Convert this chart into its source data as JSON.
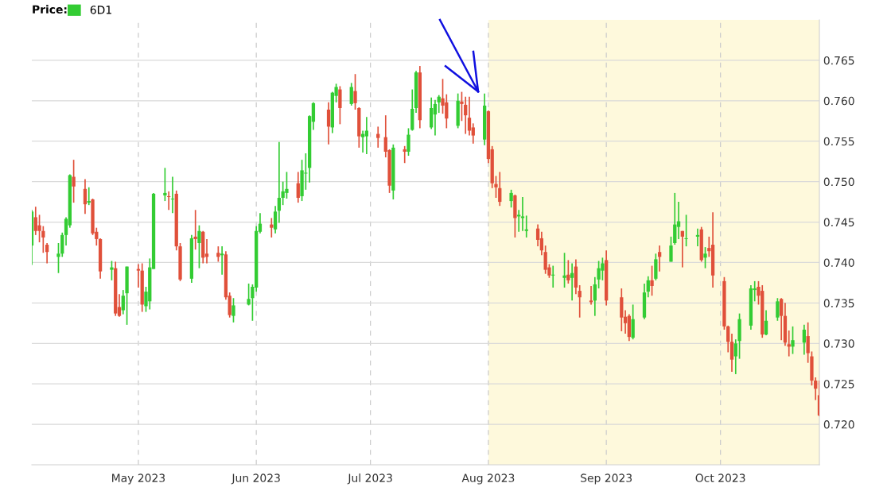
{
  "chart_data": {
    "type": "candlestick",
    "legend_title": "Price:",
    "x": [
      "2023-04-03",
      "2023-04-04",
      "2023-04-05",
      "2023-04-06",
      "2023-04-07",
      "2023-04-10",
      "2023-04-11",
      "2023-04-12",
      "2023-04-13",
      "2023-04-14",
      "2023-04-17",
      "2023-04-18",
      "2023-04-19",
      "2023-04-20",
      "2023-04-21",
      "2023-04-24",
      "2023-04-25",
      "2023-04-26",
      "2023-04-27",
      "2023-04-28",
      "2023-05-01",
      "2023-05-02",
      "2023-05-03",
      "2023-05-04",
      "2023-05-05",
      "2023-05-08",
      "2023-05-09",
      "2023-05-10",
      "2023-05-11",
      "2023-05-12",
      "2023-05-15",
      "2023-05-16",
      "2023-05-17",
      "2023-05-18",
      "2023-05-19",
      "2023-05-22",
      "2023-05-23",
      "2023-05-24",
      "2023-05-25",
      "2023-05-26",
      "2023-05-30",
      "2023-05-31",
      "2023-06-01",
      "2023-06-02",
      "2023-06-05",
      "2023-06-06",
      "2023-06-07",
      "2023-06-08",
      "2023-06-09",
      "2023-06-12",
      "2023-06-13",
      "2023-06-14",
      "2023-06-15",
      "2023-06-16",
      "2023-06-20",
      "2023-06-21",
      "2023-06-22",
      "2023-06-23",
      "2023-06-26",
      "2023-06-27",
      "2023-06-28",
      "2023-06-29",
      "2023-06-30",
      "2023-07-03",
      "2023-07-05",
      "2023-07-06",
      "2023-07-07",
      "2023-07-10",
      "2023-07-11",
      "2023-07-12",
      "2023-07-13",
      "2023-07-14",
      "2023-07-17",
      "2023-07-18",
      "2023-07-19",
      "2023-07-20",
      "2023-07-21",
      "2023-07-24",
      "2023-07-25",
      "2023-07-26",
      "2023-07-27",
      "2023-07-28",
      "2023-07-31",
      "2023-08-01",
      "2023-08-02",
      "2023-08-03",
      "2023-08-04",
      "2023-08-07",
      "2023-08-08",
      "2023-08-09",
      "2023-08-10",
      "2023-08-11",
      "2023-08-14",
      "2023-08-15",
      "2023-08-16",
      "2023-08-17",
      "2023-08-18",
      "2023-08-21",
      "2023-08-22",
      "2023-08-23",
      "2023-08-24",
      "2023-08-25",
      "2023-08-28",
      "2023-08-29",
      "2023-08-30",
      "2023-08-31",
      "2023-09-01",
      "2023-09-05",
      "2023-09-06",
      "2023-09-07",
      "2023-09-08",
      "2023-09-11",
      "2023-09-12",
      "2023-09-13",
      "2023-09-14",
      "2023-09-15",
      "2023-09-18",
      "2023-09-19",
      "2023-09-20",
      "2023-09-21",
      "2023-09-22",
      "2023-09-25",
      "2023-09-26",
      "2023-09-27",
      "2023-09-28",
      "2023-09-29",
      "2023-10-02",
      "2023-10-03",
      "2023-10-04",
      "2023-10-05",
      "2023-10-06",
      "2023-10-09",
      "2023-10-10",
      "2023-10-11",
      "2023-10-12",
      "2023-10-13",
      "2023-10-16",
      "2023-10-17",
      "2023-10-18",
      "2023-10-19",
      "2023-10-20",
      "2023-10-23",
      "2023-10-24",
      "2023-10-25",
      "2023-10-26",
      "2023-10-27"
    ],
    "series": [
      {
        "name": "6D1",
        "color": "#33cc33",
        "colors": [
          "#33cc33",
          "#e0503a",
          "#e0503a",
          "#e0503a",
          "#e0503a",
          "#33cc33",
          "#33cc33",
          "#33cc33",
          "#33cc33",
          "#e0503a",
          "#e0503a",
          "#33cc33",
          "#e0503a",
          "#e0503a",
          "#e0503a",
          "#33cc33",
          "#e0503a",
          "#e0503a",
          "#33cc33",
          "#33cc33",
          "#e0503a",
          "#e0503a",
          "#33cc33",
          "#33cc33",
          "#33cc33",
          "#33cc33",
          "#e0503a",
          "#33cc33",
          "#e0503a",
          "#e0503a",
          "#33cc33",
          "#e0503a",
          "#33cc33",
          "#e0503a",
          "#e0503a",
          "#e0503a",
          "#33cc33",
          "#e0503a",
          "#e0503a",
          "#33cc33",
          "#33cc33",
          "#33cc33",
          "#33cc33",
          "#33cc33",
          "#e0503a",
          "#33cc33",
          "#33cc33",
          "#33cc33",
          "#33cc33",
          "#e0503a",
          "#33cc33",
          "#33cc33",
          "#33cc33",
          "#33cc33",
          "#e0503a",
          "#33cc33",
          "#33cc33",
          "#e0503a",
          "#33cc33",
          "#e0503a",
          "#e0503a",
          "#33cc33",
          "#33cc33",
          "#e0503a",
          "#e0503a",
          "#e0503a",
          "#33cc33",
          "#e0503a",
          "#33cc33",
          "#33cc33",
          "#33cc33",
          "#e0503a",
          "#33cc33",
          "#33cc33",
          "#33cc33",
          "#e0503a",
          "#e0503a",
          "#33cc33",
          "#e0503a",
          "#e0503a",
          "#e0503a",
          "#e0503a",
          "#33cc33",
          "#e0503a",
          "#e0503a",
          "#e0503a",
          "#e0503a",
          "#33cc33",
          "#e0503a",
          "#33cc33",
          "#33cc33",
          "#33cc33",
          "#e0503a",
          "#e0503a",
          "#e0503a",
          "#e0503a",
          "#33cc33",
          "#33cc33",
          "#e0503a",
          "#33cc33",
          "#e0503a",
          "#e0503a",
          "#e0503a",
          "#33cc33",
          "#33cc33",
          "#33cc33",
          "#e0503a",
          "#e0503a",
          "#e0503a",
          "#e0503a",
          "#33cc33",
          "#33cc33",
          "#33cc33",
          "#e0503a",
          "#33cc33",
          "#e0503a",
          "#33cc33",
          "#33cc33",
          "#33cc33",
          "#e0503a",
          "#33cc33",
          "#33cc33",
          "#e0503a",
          "#33cc33",
          "#e0503a",
          "#e0503a",
          "#e0503a",
          "#e0503a",
          "#e0503a",
          "#33cc33",
          "#33cc33",
          "#33cc33",
          "#33cc33",
          "#e0503a",
          "#e0503a",
          "#33cc33",
          "#33cc33",
          "#e0503a",
          "#e0503a",
          "#e0503a",
          "#33cc33",
          "#33cc33",
          "#e0503a",
          "#e0503a",
          "#e0503a",
          "#e0503a"
        ],
        "ohlc": [
          [
            0.7421,
            0.7465,
            0.7397,
            0.7463
          ],
          [
            0.7456,
            0.7469,
            0.7434,
            0.7439
          ],
          [
            0.7446,
            0.7459,
            0.7425,
            0.7439
          ],
          [
            0.7439,
            0.7445,
            0.7412,
            0.7431
          ],
          [
            0.7422,
            0.7424,
            0.7399,
            0.7413
          ],
          [
            0.7407,
            0.7424,
            0.7387,
            0.7411
          ],
          [
            0.7411,
            0.7437,
            0.7407,
            0.7434
          ],
          [
            0.7434,
            0.7456,
            0.7421,
            0.7454
          ],
          [
            0.7446,
            0.7509,
            0.7443,
            0.7508
          ],
          [
            0.7506,
            0.7527,
            0.7474,
            0.7494
          ],
          [
            0.7491,
            0.7503,
            0.746,
            0.7472
          ],
          [
            0.7474,
            0.7493,
            0.7471,
            0.7476
          ],
          [
            0.7478,
            0.7479,
            0.7434,
            0.7436
          ],
          [
            0.7438,
            0.7443,
            0.7421,
            0.7429
          ],
          [
            0.7429,
            0.743,
            0.738,
            0.7389
          ],
          [
            0.7391,
            0.7402,
            0.7378,
            0.7394
          ],
          [
            0.7393,
            0.7401,
            0.7334,
            0.7337
          ],
          [
            0.7345,
            0.7361,
            0.7333,
            0.7334
          ],
          [
            0.7341,
            0.7366,
            0.7336,
            0.7359
          ],
          [
            0.7362,
            0.7395,
            0.7323,
            0.7395
          ],
          [
            0.7392,
            0.7398,
            0.7369,
            0.739
          ],
          [
            0.739,
            0.7399,
            0.7339,
            0.7348
          ],
          [
            0.7346,
            0.737,
            0.7339,
            0.7364
          ],
          [
            0.7352,
            0.7405,
            0.7342,
            0.7394
          ],
          [
            0.7392,
            0.7486,
            0.7392,
            0.7485
          ],
          [
            0.7483,
            0.7517,
            0.7476,
            0.7486
          ],
          [
            0.7482,
            0.7488,
            0.7465,
            0.7481
          ],
          [
            0.7478,
            0.7506,
            0.7461,
            0.7479
          ],
          [
            0.7485,
            0.7489,
            0.7415,
            0.742
          ],
          [
            0.742,
            0.7424,
            0.7377,
            0.7379
          ],
          [
            0.738,
            0.7434,
            0.7375,
            0.743
          ],
          [
            0.7432,
            0.7465,
            0.7416,
            0.7429
          ],
          [
            0.7424,
            0.7446,
            0.7393,
            0.7439
          ],
          [
            0.7438,
            0.7439,
            0.7399,
            0.7406
          ],
          [
            0.7411,
            0.7429,
            0.7399,
            0.7407
          ],
          [
            0.7412,
            0.742,
            0.7401,
            0.7407
          ],
          [
            0.7409,
            0.742,
            0.7385,
            0.7411
          ],
          [
            0.741,
            0.7414,
            0.7354,
            0.7357
          ],
          [
            0.7359,
            0.7363,
            0.7332,
            0.7335
          ],
          [
            0.7334,
            0.7356,
            0.7326,
            0.7347
          ],
          [
            0.7348,
            0.7374,
            0.7347,
            0.7355
          ],
          [
            0.7356,
            0.7373,
            0.7328,
            0.737
          ],
          [
            0.7369,
            0.7445,
            0.7364,
            0.7439
          ],
          [
            0.7438,
            0.7461,
            0.7436,
            0.7448
          ],
          [
            0.7447,
            0.7455,
            0.7431,
            0.7443
          ],
          [
            0.7441,
            0.747,
            0.7436,
            0.7463
          ],
          [
            0.7464,
            0.7549,
            0.7449,
            0.748
          ],
          [
            0.748,
            0.75,
            0.7471,
            0.7488
          ],
          [
            0.7486,
            0.7512,
            0.7479,
            0.7491
          ],
          [
            0.7498,
            0.7512,
            0.7474,
            0.748
          ],
          [
            0.7482,
            0.7527,
            0.7476,
            0.7514
          ],
          [
            0.751,
            0.7535,
            0.749,
            0.7511
          ],
          [
            0.7517,
            0.7582,
            0.7499,
            0.7581
          ],
          [
            0.7574,
            0.7598,
            0.7564,
            0.7597
          ],
          [
            0.7589,
            0.7598,
            0.7546,
            0.7568
          ],
          [
            0.7567,
            0.7611,
            0.756,
            0.761
          ],
          [
            0.7606,
            0.7621,
            0.7598,
            0.7617
          ],
          [
            0.7614,
            0.7618,
            0.7571,
            0.7591
          ],
          [
            0.7596,
            0.7622,
            0.7594,
            0.7617
          ],
          [
            0.7612,
            0.7633,
            0.7589,
            0.7597
          ],
          [
            0.7591,
            0.7592,
            0.7542,
            0.7556
          ],
          [
            0.7555,
            0.7563,
            0.7536,
            0.7559
          ],
          [
            0.7556,
            0.758,
            0.7534,
            0.7563
          ],
          [
            0.7559,
            0.7568,
            0.7542,
            0.7554
          ],
          [
            0.7555,
            0.7582,
            0.753,
            0.7537
          ],
          [
            0.7539,
            0.754,
            0.7486,
            0.7495
          ],
          [
            0.7489,
            0.7546,
            0.7478,
            0.7542
          ],
          [
            0.754,
            0.7544,
            0.7523,
            0.7537
          ],
          [
            0.7537,
            0.7566,
            0.7532,
            0.7558
          ],
          [
            0.7564,
            0.7614,
            0.7563,
            0.759
          ],
          [
            0.7591,
            0.7637,
            0.7585,
            0.7635
          ],
          [
            0.7635,
            0.7643,
            0.7566,
            0.7576
          ],
          [
            0.7567,
            0.7604,
            0.7565,
            0.7591
          ],
          [
            0.7583,
            0.7601,
            0.7557,
            0.7596
          ],
          [
            0.7598,
            0.7607,
            0.7585,
            0.7605
          ],
          [
            0.7603,
            0.7627,
            0.7584,
            0.7594
          ],
          [
            0.7598,
            0.7608,
            0.7566,
            0.7578
          ],
          [
            0.7569,
            0.7609,
            0.7566,
            0.76
          ],
          [
            0.7599,
            0.7611,
            0.7575,
            0.7596
          ],
          [
            0.7595,
            0.7605,
            0.7559,
            0.7582
          ],
          [
            0.7579,
            0.7605,
            0.7557,
            0.7563
          ],
          [
            0.7567,
            0.7572,
            0.7547,
            0.7557
          ],
          [
            0.7552,
            0.7609,
            0.7545,
            0.7594
          ],
          [
            0.7587,
            0.7588,
            0.7523,
            0.7528
          ],
          [
            0.754,
            0.7544,
            0.7492,
            0.7498
          ],
          [
            0.7497,
            0.7507,
            0.748,
            0.7493
          ],
          [
            0.7492,
            0.7512,
            0.747,
            0.7475
          ],
          [
            0.7476,
            0.749,
            0.7468,
            0.7486
          ],
          [
            0.7483,
            0.7484,
            0.7431,
            0.7455
          ],
          [
            0.7457,
            0.7465,
            0.7438,
            0.7459
          ],
          [
            0.7455,
            0.7481,
            0.7439,
            0.7457
          ],
          [
            0.7439,
            0.7458,
            0.7431,
            0.7441
          ],
          [
            0.7442,
            0.7447,
            0.742,
            0.7428
          ],
          [
            0.743,
            0.7438,
            0.7409,
            0.7415
          ],
          [
            0.7413,
            0.7421,
            0.7386,
            0.7391
          ],
          [
            0.7394,
            0.7398,
            0.7381,
            0.7384
          ],
          [
            0.7384,
            0.7396,
            0.7369,
            0.7385
          ],
          [
            0.7381,
            0.7412,
            0.7369,
            0.7384
          ],
          [
            0.7385,
            0.7403,
            0.7374,
            0.7378
          ],
          [
            0.7381,
            0.7399,
            0.7353,
            0.7387
          ],
          [
            0.7395,
            0.7404,
            0.7361,
            0.7369
          ],
          [
            0.7365,
            0.7372,
            0.7332,
            0.7357
          ],
          [
            0.7353,
            0.7371,
            0.7348,
            0.7351
          ],
          [
            0.7353,
            0.7382,
            0.7334,
            0.7373
          ],
          [
            0.7379,
            0.7402,
            0.7368,
            0.7393
          ],
          [
            0.739,
            0.7406,
            0.7378,
            0.7399
          ],
          [
            0.7403,
            0.7415,
            0.7347,
            0.7353
          ],
          [
            0.7357,
            0.7368,
            0.7315,
            0.7332
          ],
          [
            0.7333,
            0.7341,
            0.7312,
            0.7325
          ],
          [
            0.7334,
            0.7336,
            0.7303,
            0.7308
          ],
          [
            0.7307,
            0.7348,
            0.7305,
            0.733
          ],
          [
            0.7332,
            0.7374,
            0.733,
            0.7363
          ],
          [
            0.7364,
            0.7383,
            0.7357,
            0.7378
          ],
          [
            0.7378,
            0.7396,
            0.7359,
            0.7371
          ],
          [
            0.738,
            0.7411,
            0.7378,
            0.7404
          ],
          [
            0.7413,
            0.7421,
            0.7389,
            0.7407
          ],
          [
            0.7401,
            0.7432,
            0.7401,
            0.7421
          ],
          [
            0.7424,
            0.7486,
            0.7422,
            0.7447
          ],
          [
            0.7444,
            0.7475,
            0.7429,
            0.7451
          ],
          [
            0.7439,
            0.7439,
            0.7394,
            0.7432
          ],
          [
            0.7429,
            0.7459,
            0.742,
            0.743
          ],
          [
            0.7432,
            0.7442,
            0.742,
            0.7434
          ],
          [
            0.7441,
            0.7444,
            0.7401,
            0.7403
          ],
          [
            0.7406,
            0.7419,
            0.7393,
            0.7411
          ],
          [
            0.7418,
            0.7432,
            0.7407,
            0.7414
          ],
          [
            0.7422,
            0.7462,
            0.7369,
            0.7384
          ],
          [
            0.7377,
            0.7382,
            0.7317,
            0.7321
          ],
          [
            0.7321,
            0.7322,
            0.7289,
            0.7302
          ],
          [
            0.7302,
            0.7312,
            0.7265,
            0.728
          ],
          [
            0.7284,
            0.7305,
            0.7262,
            0.73
          ],
          [
            0.7303,
            0.7337,
            0.7281,
            0.733
          ],
          [
            0.7322,
            0.7372,
            0.7317,
            0.7368
          ],
          [
            0.7366,
            0.7377,
            0.7352,
            0.7368
          ],
          [
            0.737,
            0.7377,
            0.7348,
            0.7359
          ],
          [
            0.7365,
            0.7372,
            0.7307,
            0.7311
          ],
          [
            0.7311,
            0.7341,
            0.731,
            0.7328
          ],
          [
            0.7332,
            0.7356,
            0.7328,
            0.7352
          ],
          [
            0.7355,
            0.7356,
            0.7304,
            0.7334
          ],
          [
            0.7334,
            0.735,
            0.7297,
            0.7301
          ],
          [
            0.7299,
            0.7316,
            0.7284,
            0.7296
          ],
          [
            0.7296,
            0.7321,
            0.7287,
            0.7304
          ],
          [
            0.7301,
            0.7323,
            0.7286,
            0.7317
          ],
          [
            0.7309,
            0.7326,
            0.7276,
            0.7288
          ],
          [
            0.7284,
            0.729,
            0.7248,
            0.7254
          ],
          [
            0.7254,
            0.7258,
            0.723,
            0.7244
          ],
          [
            0.7236,
            0.7254,
            0.721,
            0.7211
          ]
        ]
      }
    ],
    "xlim": [
      "2023-04-03",
      "2023-10-27"
    ],
    "xticks": [
      {
        "value": "2023-05-01",
        "label": "May 2023"
      },
      {
        "value": "2023-06-01",
        "label": "Jun 2023"
      },
      {
        "value": "2023-07-01",
        "label": "Jul 2023"
      },
      {
        "value": "2023-08-01",
        "label": "Aug 2023"
      },
      {
        "value": "2023-09-01",
        "label": "Sep 2023"
      },
      {
        "value": "2023-10-01",
        "label": "Oct 2023"
      }
    ],
    "ylim": [
      0.715,
      0.77
    ],
    "yticks": [
      {
        "value": 0.72,
        "label": "0.720"
      },
      {
        "value": 0.725,
        "label": "0.725"
      },
      {
        "value": 0.73,
        "label": "0.730"
      },
      {
        "value": 0.735,
        "label": "0.735"
      },
      {
        "value": 0.74,
        "label": "0.740"
      },
      {
        "value": 0.745,
        "label": "0.745"
      },
      {
        "value": 0.75,
        "label": "0.750"
      },
      {
        "value": 0.755,
        "label": "0.755"
      },
      {
        "value": 0.76,
        "label": "0.760"
      },
      {
        "value": 0.765,
        "label": "0.765"
      }
    ],
    "bands": [
      {
        "axis": "x",
        "from": "2023-08-01",
        "to": "2023-10-27",
        "color": "#fef9dc"
      }
    ],
    "grid": true,
    "legend": "top left"
  }
}
